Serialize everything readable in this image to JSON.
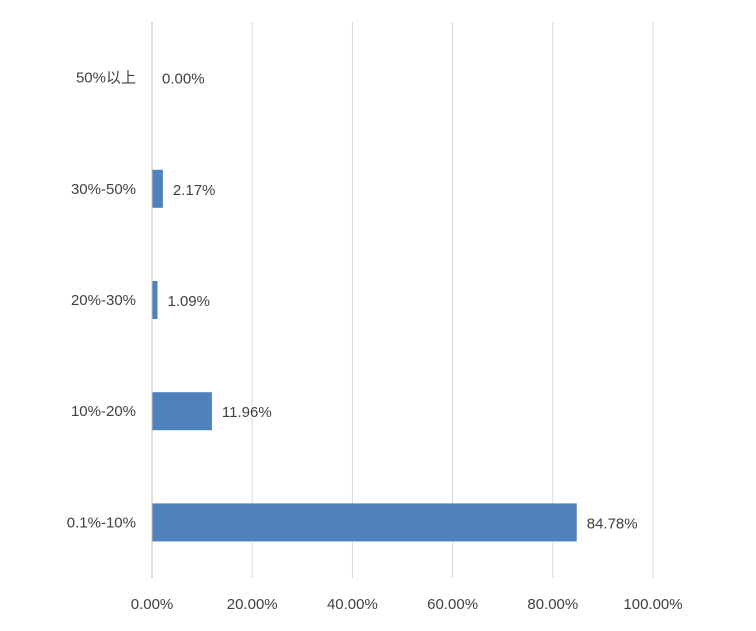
{
  "chart_data": {
    "type": "bar",
    "orientation": "horizontal",
    "categories": [
      "0.1%-10%",
      "10%-20%",
      "20%-30%",
      "30%-50%",
      "50%以上"
    ],
    "values": [
      84.78,
      11.96,
      1.09,
      2.17,
      0.0
    ],
    "data_labels": [
      "84.78%",
      "11.96%",
      "1.09%",
      "2.17%",
      "0.00%"
    ],
    "x_tick_labels": [
      "0.00%",
      "20.00%",
      "40.00%",
      "60.00%",
      "80.00%",
      "100.00%"
    ],
    "x_ticks": [
      0,
      20,
      40,
      60,
      80,
      100
    ],
    "xlim": [
      0,
      100
    ],
    "title": "",
    "xlabel": "",
    "ylabel": "",
    "grid": "vertical",
    "legend": "none",
    "colors": {
      "bar": "#4f81bd",
      "grid": "#d9d9d9",
      "axis": "#bfbfbf",
      "text": "#404040"
    }
  }
}
